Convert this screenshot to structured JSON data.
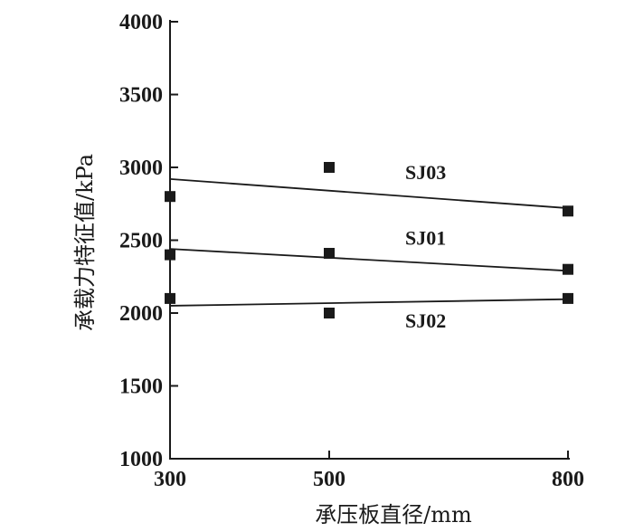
{
  "chart_data": {
    "type": "scatter",
    "xlabel": "承压板直径/mm",
    "ylabel": "承载力特征值/kPa",
    "xlim": [
      300,
      800
    ],
    "ylim": [
      1000,
      4000
    ],
    "x_ticks": [
      300,
      500,
      800
    ],
    "y_ticks": [
      1000,
      1500,
      2000,
      2500,
      3000,
      3500,
      4000
    ],
    "series": [
      {
        "name": "SJ03",
        "points": [
          [
            300,
            2800
          ],
          [
            500,
            3000
          ],
          [
            800,
            2700
          ]
        ],
        "trend": [
          [
            300,
            2920
          ],
          [
            800,
            2720
          ]
        ]
      },
      {
        "name": "SJ01",
        "points": [
          [
            300,
            2400
          ],
          [
            500,
            2410
          ],
          [
            800,
            2300
          ]
        ],
        "trend": [
          [
            300,
            2440
          ],
          [
            800,
            2290
          ]
        ]
      },
      {
        "name": "SJ02",
        "points": [
          [
            300,
            2100
          ],
          [
            500,
            2000
          ],
          [
            800,
            2100
          ]
        ],
        "trend": [
          [
            300,
            2050
          ],
          [
            800,
            2095
          ]
        ]
      }
    ],
    "colors": {
      "ink": "#1a1a1a"
    }
  }
}
